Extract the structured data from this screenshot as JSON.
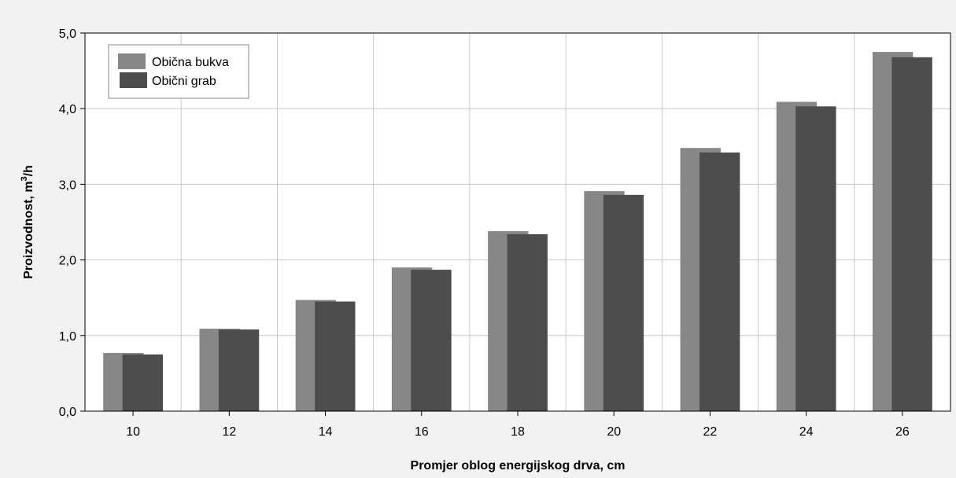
{
  "chart_data": {
    "type": "bar",
    "categories": [
      "10",
      "12",
      "14",
      "16",
      "18",
      "20",
      "22",
      "24",
      "26"
    ],
    "series": [
      {
        "name": "Obična bukva",
        "values": [
          0.77,
          1.09,
          1.47,
          1.9,
          2.38,
          2.91,
          3.48,
          4.09,
          4.75
        ]
      },
      {
        "name": "Obični grab",
        "values": [
          0.75,
          1.08,
          1.45,
          1.87,
          2.34,
          2.86,
          3.42,
          4.03,
          4.68
        ]
      }
    ],
    "xlabel": "Promjer oblog energijskog drva, cm",
    "ylabel_main": "Proizvodnost, m",
    "ylabel_sup": "3",
    "ylabel_tail": "/h",
    "ylim": [
      0,
      5
    ],
    "yticks": [
      "0,0",
      "1,0",
      "2,0",
      "3,0",
      "4,0",
      "5,0"
    ],
    "grid": true,
    "legend_position": "top-left",
    "colors": [
      "#878787",
      "#4d4d4d"
    ]
  }
}
